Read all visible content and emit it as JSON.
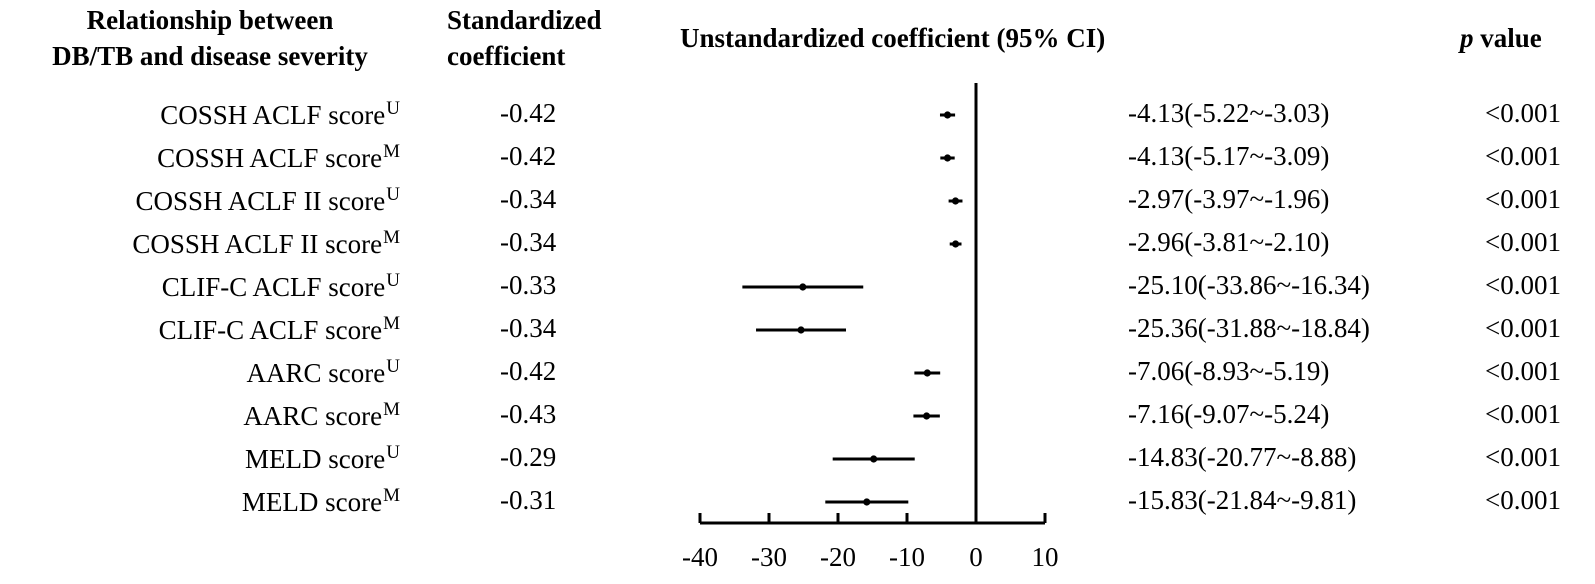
{
  "headers": {
    "relationship_line1": "Relationship between",
    "relationship_line2": "DB/TB and disease severity",
    "standardized_line1": "Standardized",
    "standardized_line2": "coefficient",
    "unstandardized": "Unstandardized coefficient (95% CI)",
    "p_italic": "p",
    "p_rest": " value"
  },
  "chart_data": {
    "type": "forest",
    "x_ticks": [
      -40,
      -30,
      -20,
      -10,
      0,
      10
    ],
    "xlim": [
      -40,
      10
    ],
    "reference_line": 0,
    "rows": [
      {
        "label": "COSSH ACLF score",
        "sup": "U",
        "std": "-0.42",
        "ci_text": "-4.13(-5.22~-3.03)",
        "p": "<0.001",
        "est": -4.13,
        "lo": -5.22,
        "hi": -3.03
      },
      {
        "label": "COSSH ACLF score",
        "sup": "M",
        "std": "-0.42",
        "ci_text": "-4.13(-5.17~-3.09)",
        "p": "<0.001",
        "est": -4.13,
        "lo": -5.17,
        "hi": -3.09
      },
      {
        "label": "COSSH ACLF II score",
        "sup": "U",
        "std": "-0.34",
        "ci_text": "-2.97(-3.97~-1.96)",
        "p": "<0.001",
        "est": -2.97,
        "lo": -3.97,
        "hi": -1.96
      },
      {
        "label": "COSSH ACLF II score",
        "sup": "M",
        "std": "-0.34",
        "ci_text": "-2.96(-3.81~-2.10)",
        "p": "<0.001",
        "est": -2.96,
        "lo": -3.81,
        "hi": -2.1
      },
      {
        "label": "CLIF-C ACLF score",
        "sup": "U",
        "std": "-0.33",
        "ci_text": "-25.10(-33.86~-16.34)",
        "p": "<0.001",
        "est": -25.1,
        "lo": -33.86,
        "hi": -16.34
      },
      {
        "label": "CLIF-C ACLF score",
        "sup": "M",
        "std": "-0.34",
        "ci_text": "-25.36(-31.88~-18.84)",
        "p": "<0.001",
        "est": -25.36,
        "lo": -31.88,
        "hi": -18.84
      },
      {
        "label": "AARC score",
        "sup": "U",
        "std": "-0.42",
        "ci_text": "-7.06(-8.93~-5.19)",
        "p": "<0.001",
        "est": -7.06,
        "lo": -8.93,
        "hi": -5.19
      },
      {
        "label": "AARC score",
        "sup": "M",
        "std": "-0.43",
        "ci_text": "-7.16(-9.07~-5.24)",
        "p": "<0.001",
        "est": -7.16,
        "lo": -9.07,
        "hi": -5.24
      },
      {
        "label": "MELD score",
        "sup": "U",
        "std": "-0.29",
        "ci_text": "-14.83(-20.77~-8.88)",
        "p": "<0.001",
        "est": -14.83,
        "lo": -20.77,
        "hi": -8.88
      },
      {
        "label": "MELD score",
        "sup": "M",
        "std": "-0.31",
        "ci_text": "-15.83(-21.84~-9.81)",
        "p": "<0.001",
        "est": -15.83,
        "lo": -21.84,
        "hi": -9.81
      }
    ]
  }
}
